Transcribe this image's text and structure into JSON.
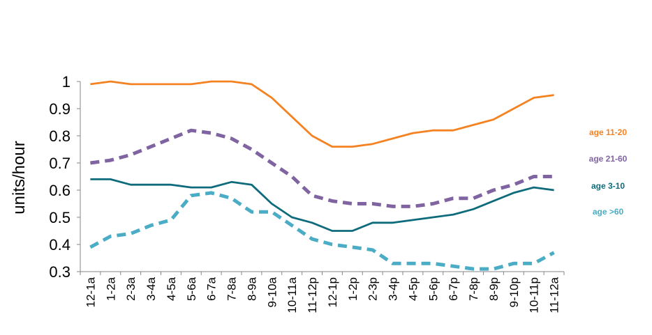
{
  "chart_data": {
    "type": "line",
    "title": "",
    "xlabel": "",
    "ylabel": "units/hour",
    "ylim": [
      0.3,
      1.0
    ],
    "yticks": [
      "0.3",
      "0.4",
      "0.5",
      "0.6",
      "0.7",
      "0.8",
      "0.9",
      "1"
    ],
    "grid": false,
    "legend_position": "right",
    "categories": [
      "12-1a",
      "1-2a",
      "2-3a",
      "3-4a",
      "4-5a",
      "5-6a",
      "6-7a",
      "7-8a",
      "8-9a",
      "9-10a",
      "10-11a",
      "11-12p",
      "12-1p",
      "1-2p",
      "2-3p",
      "3-4p",
      "4-5p",
      "5-6p",
      "6-7p",
      "7-8p",
      "8-9p",
      "9-10p",
      "10-11p",
      "11-12a"
    ],
    "series": [
      {
        "name": "age 11-20",
        "color": "#f58220",
        "style": "solid",
        "values": [
          0.99,
          1.0,
          0.99,
          0.99,
          0.99,
          0.99,
          1.0,
          1.0,
          0.99,
          0.94,
          0.87,
          0.8,
          0.76,
          0.76,
          0.77,
          0.79,
          0.81,
          0.82,
          0.82,
          0.84,
          0.86,
          0.9,
          0.94,
          0.95
        ]
      },
      {
        "name": "age 21-60",
        "color": "#8064a2",
        "style": "dashed",
        "values": [
          0.7,
          0.71,
          0.73,
          0.76,
          0.79,
          0.82,
          0.81,
          0.79,
          0.75,
          0.7,
          0.65,
          0.58,
          0.56,
          0.55,
          0.55,
          0.54,
          0.54,
          0.55,
          0.57,
          0.57,
          0.6,
          0.62,
          0.65,
          0.65
        ]
      },
      {
        "name": "age 3-10",
        "color": "#0e6b7c",
        "style": "solid",
        "values": [
          0.64,
          0.64,
          0.62,
          0.62,
          0.62,
          0.61,
          0.61,
          0.63,
          0.62,
          0.55,
          0.5,
          0.48,
          0.45,
          0.45,
          0.48,
          0.48,
          0.49,
          0.5,
          0.51,
          0.53,
          0.56,
          0.59,
          0.61,
          0.6
        ]
      },
      {
        "name": "age >60",
        "color": "#4bacc6",
        "style": "dashed",
        "values": [
          0.39,
          0.43,
          0.44,
          0.47,
          0.49,
          0.58,
          0.59,
          0.57,
          0.52,
          0.52,
          0.47,
          0.42,
          0.4,
          0.39,
          0.38,
          0.33,
          0.33,
          0.33,
          0.32,
          0.31,
          0.31,
          0.33,
          0.33,
          0.37
        ]
      }
    ]
  }
}
